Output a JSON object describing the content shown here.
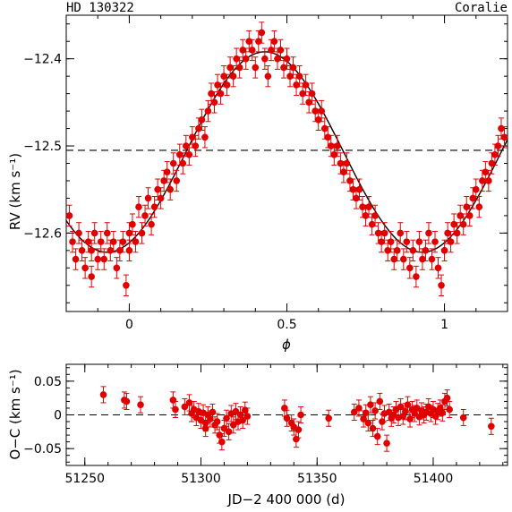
{
  "header": {
    "star": "HD 130322",
    "instrument": "Coralie"
  },
  "chart_data": [
    {
      "type": "scatter",
      "panel": "phase-folded radial velocity",
      "xlabel": "ϕ",
      "ylabel": "RV (km s⁻¹)",
      "xlim": [
        -0.2,
        1.2
      ],
      "ylim": [
        -12.69,
        -12.35
      ],
      "x_ticks": [
        0,
        0.5,
        1
      ],
      "x_tick_labels": [
        "0",
        "0.5",
        "1"
      ],
      "y_ticks": [
        -12.6,
        -12.5,
        -12.4
      ],
      "y_tick_labels": [
        "−12.6",
        "−12.5",
        "−12.4"
      ],
      "reference_line_y": -12.505,
      "model_curve": {
        "kind": "sinusoid",
        "mean": -12.507,
        "amplitude": 0.115,
        "peak_phase": 0.43
      },
      "error_bar": 0.012,
      "points": [
        [
          -0.19,
          -12.58
        ],
        [
          -0.18,
          -12.61
        ],
        [
          -0.17,
          -12.63
        ],
        [
          -0.16,
          -12.6
        ],
        [
          -0.15,
          -12.62
        ],
        [
          -0.14,
          -12.64
        ],
        [
          -0.13,
          -12.61
        ],
        [
          -0.12,
          -12.65
        ],
        [
          -0.12,
          -12.62
        ],
        [
          -0.11,
          -12.6
        ],
        [
          -0.1,
          -12.63
        ],
        [
          -0.09,
          -12.61
        ],
        [
          -0.08,
          -12.63
        ],
        [
          -0.07,
          -12.6
        ],
        [
          -0.06,
          -12.62
        ],
        [
          -0.05,
          -12.61
        ],
        [
          -0.04,
          -12.64
        ],
        [
          -0.03,
          -12.62
        ],
        [
          -0.02,
          -12.61
        ],
        [
          -0.01,
          -12.66
        ],
        [
          0.0,
          -12.62
        ],
        [
          0.0,
          -12.6
        ],
        [
          0.01,
          -12.59
        ],
        [
          0.02,
          -12.61
        ],
        [
          0.03,
          -12.57
        ],
        [
          0.04,
          -12.6
        ],
        [
          0.05,
          -12.58
        ],
        [
          0.06,
          -12.56
        ],
        [
          0.07,
          -12.59
        ],
        [
          0.08,
          -12.57
        ],
        [
          0.09,
          -12.55
        ],
        [
          0.1,
          -12.56
        ],
        [
          0.11,
          -12.54
        ],
        [
          0.12,
          -12.53
        ],
        [
          0.13,
          -12.55
        ],
        [
          0.14,
          -12.52
        ],
        [
          0.15,
          -12.54
        ],
        [
          0.16,
          -12.51
        ],
        [
          0.17,
          -12.52
        ],
        [
          0.18,
          -12.5
        ],
        [
          0.19,
          -12.51
        ],
        [
          0.2,
          -12.49
        ],
        [
          0.21,
          -12.5
        ],
        [
          0.22,
          -12.48
        ],
        [
          0.23,
          -12.47
        ],
        [
          0.24,
          -12.49
        ],
        [
          0.25,
          -12.46
        ],
        [
          0.26,
          -12.44
        ],
        [
          0.27,
          -12.45
        ],
        [
          0.28,
          -12.43
        ],
        [
          0.29,
          -12.44
        ],
        [
          0.3,
          -12.42
        ],
        [
          0.31,
          -12.43
        ],
        [
          0.32,
          -12.41
        ],
        [
          0.33,
          -12.42
        ],
        [
          0.34,
          -12.4
        ],
        [
          0.35,
          -12.41
        ],
        [
          0.36,
          -12.39
        ],
        [
          0.37,
          -12.4
        ],
        [
          0.38,
          -12.38
        ],
        [
          0.39,
          -12.39
        ],
        [
          0.4,
          -12.41
        ],
        [
          0.41,
          -12.38
        ],
        [
          0.42,
          -12.37
        ],
        [
          0.43,
          -12.4
        ],
        [
          0.44,
          -12.42
        ],
        [
          0.45,
          -12.39
        ],
        [
          0.46,
          -12.38
        ],
        [
          0.47,
          -12.4
        ],
        [
          0.48,
          -12.39
        ],
        [
          0.49,
          -12.41
        ],
        [
          0.5,
          -12.4
        ],
        [
          0.51,
          -12.42
        ],
        [
          0.52,
          -12.41
        ],
        [
          0.53,
          -12.43
        ],
        [
          0.54,
          -12.42
        ],
        [
          0.55,
          -12.44
        ],
        [
          0.56,
          -12.43
        ],
        [
          0.57,
          -12.45
        ],
        [
          0.58,
          -12.44
        ],
        [
          0.59,
          -12.46
        ],
        [
          0.6,
          -12.47
        ],
        [
          0.61,
          -12.46
        ],
        [
          0.62,
          -12.48
        ],
        [
          0.63,
          -12.49
        ],
        [
          0.64,
          -12.5
        ],
        [
          0.65,
          -12.51
        ],
        [
          0.66,
          -12.5
        ],
        [
          0.67,
          -12.52
        ],
        [
          0.68,
          -12.53
        ],
        [
          0.69,
          -12.52
        ],
        [
          0.7,
          -12.54
        ],
        [
          0.71,
          -12.55
        ],
        [
          0.72,
          -12.56
        ],
        [
          0.73,
          -12.55
        ],
        [
          0.74,
          -12.57
        ],
        [
          0.75,
          -12.58
        ],
        [
          0.76,
          -12.57
        ],
        [
          0.77,
          -12.59
        ],
        [
          0.78,
          -12.58
        ],
        [
          0.79,
          -12.6
        ],
        [
          0.8,
          -12.61
        ],
        [
          0.81,
          -12.6
        ],
        [
          0.82,
          -12.62
        ],
        [
          0.83,
          -12.61
        ],
        [
          0.84,
          -12.63
        ],
        [
          0.85,
          -12.62
        ],
        [
          0.86,
          -12.6
        ],
        [
          0.87,
          -12.63
        ],
        [
          0.88,
          -12.61
        ],
        [
          0.89,
          -12.64
        ],
        [
          0.9,
          -12.62
        ],
        [
          0.91,
          -12.65
        ],
        [
          0.92,
          -12.61
        ],
        [
          0.93,
          -12.63
        ],
        [
          0.94,
          -12.62
        ],
        [
          0.95,
          -12.6
        ],
        [
          0.96,
          -12.63
        ],
        [
          0.97,
          -12.61
        ],
        [
          0.98,
          -12.64
        ],
        [
          0.99,
          -12.66
        ],
        [
          1.0,
          -12.62
        ],
        [
          1.01,
          -12.6
        ],
        [
          1.02,
          -12.61
        ],
        [
          1.03,
          -12.59
        ],
        [
          1.04,
          -12.6
        ],
        [
          1.05,
          -12.58
        ],
        [
          1.06,
          -12.59
        ],
        [
          1.07,
          -12.57
        ],
        [
          1.08,
          -12.58
        ],
        [
          1.09,
          -12.56
        ],
        [
          1.1,
          -12.55
        ],
        [
          1.11,
          -12.57
        ],
        [
          1.12,
          -12.54
        ],
        [
          1.13,
          -12.53
        ],
        [
          1.14,
          -12.54
        ],
        [
          1.15,
          -12.52
        ],
        [
          1.16,
          -12.51
        ],
        [
          1.17,
          -12.5
        ],
        [
          1.18,
          -12.48
        ],
        [
          1.19,
          -12.49
        ]
      ]
    },
    {
      "type": "scatter",
      "panel": "residuals versus time",
      "xlabel": "JD−2 400 000 (d)",
      "ylabel": "O−C (km s⁻¹)",
      "xlim": [
        51242,
        51432
      ],
      "ylim": [
        -0.075,
        0.075
      ],
      "x_ticks": [
        51250,
        51300,
        51350,
        51400
      ],
      "x_tick_labels": [
        "51250",
        "51300",
        "51350",
        "51400"
      ],
      "y_ticks": [
        -0.05,
        0,
        0.05
      ],
      "y_tick_labels": [
        "−0.05",
        "0",
        "0.05"
      ],
      "reference_line_y": 0,
      "error_bar": 0.012,
      "points": [
        [
          51258,
          0.03
        ],
        [
          51267,
          0.022
        ],
        [
          51268,
          0.02
        ],
        [
          51274,
          0.015
        ],
        [
          51288,
          0.022
        ],
        [
          51289,
          0.008
        ],
        [
          51293,
          0.012
        ],
        [
          51295,
          0.018
        ],
        [
          51296,
          0.002
        ],
        [
          51297,
          0.008
        ],
        [
          51298,
          -0.004
        ],
        [
          51299,
          0.005
        ],
        [
          51300,
          -0.008
        ],
        [
          51301,
          0.003
        ],
        [
          51302,
          -0.012
        ],
        [
          51302,
          -0.02
        ],
        [
          51303,
          0.0
        ],
        [
          51304,
          -0.006
        ],
        [
          51305,
          0.004
        ],
        [
          51306,
          -0.015
        ],
        [
          51307,
          -0.01
        ],
        [
          51308,
          -0.03
        ],
        [
          51309,
          -0.04
        ],
        [
          51310,
          -0.02
        ],
        [
          51311,
          -0.005
        ],
        [
          51312,
          -0.025
        ],
        [
          51313,
          0.002
        ],
        [
          51314,
          -0.015
        ],
        [
          51315,
          0.005
        ],
        [
          51316,
          -0.01
        ],
        [
          51317,
          0.0
        ],
        [
          51318,
          -0.008
        ],
        [
          51319,
          0.007
        ],
        [
          51320,
          -0.002
        ],
        [
          51336,
          0.01
        ],
        [
          51337,
          -0.005
        ],
        [
          51339,
          -0.012
        ],
        [
          51340,
          -0.018
        ],
        [
          51341,
          -0.036
        ],
        [
          51342,
          -0.022
        ],
        [
          51343,
          0.0
        ],
        [
          51355,
          -0.005
        ],
        [
          51366,
          0.004
        ],
        [
          51368,
          0.01
        ],
        [
          51370,
          -0.006
        ],
        [
          51371,
          0.003
        ],
        [
          51372,
          -0.012
        ],
        [
          51373,
          0.015
        ],
        [
          51374,
          -0.02
        ],
        [
          51375,
          0.006
        ],
        [
          51376,
          -0.032
        ],
        [
          51377,
          0.02
        ],
        [
          51378,
          -0.01
        ],
        [
          51379,
          0.002
        ],
        [
          51380,
          -0.042
        ],
        [
          51381,
          0.004
        ],
        [
          51382,
          -0.005
        ],
        [
          51383,
          0.0
        ],
        [
          51384,
          0.008
        ],
        [
          51385,
          -0.004
        ],
        [
          51386,
          0.012
        ],
        [
          51387,
          -0.002
        ],
        [
          51388,
          0.005
        ],
        [
          51389,
          0.015
        ],
        [
          51390,
          -0.006
        ],
        [
          51391,
          0.008
        ],
        [
          51392,
          0.002
        ],
        [
          51393,
          0.01
        ],
        [
          51394,
          -0.003
        ],
        [
          51395,
          0.006
        ],
        [
          51396,
          0.0
        ],
        [
          51397,
          0.004
        ],
        [
          51398,
          0.012
        ],
        [
          51399,
          0.002
        ],
        [
          51400,
          0.008
        ],
        [
          51401,
          -0.002
        ],
        [
          51402,
          0.005
        ],
        [
          51403,
          0.01
        ],
        [
          51404,
          0.003
        ],
        [
          51405,
          0.02
        ],
        [
          51406,
          0.025
        ],
        [
          51407,
          0.008
        ],
        [
          51413,
          -0.004
        ],
        [
          51425,
          -0.017
        ]
      ]
    }
  ]
}
